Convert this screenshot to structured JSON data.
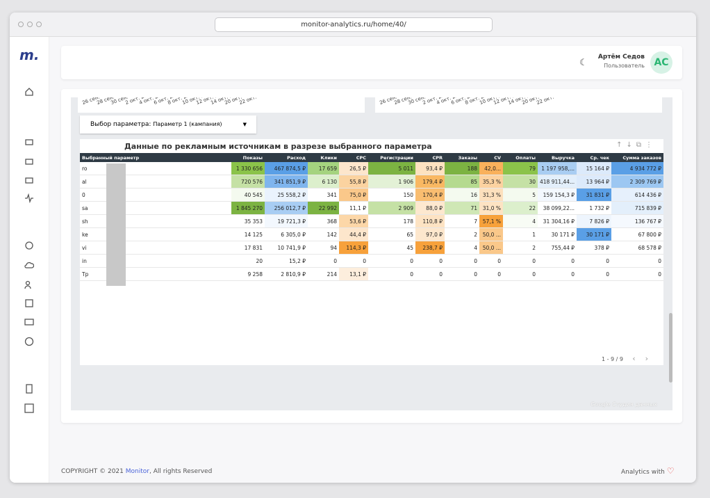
{
  "browser": {
    "url": "monitor-analytics.ru/home/40/"
  },
  "user": {
    "name": "Артём Седов",
    "role": "Пользователь",
    "initials": "АС"
  },
  "date_labels": [
    "26 сен.",
    "28 сен.",
    "30 сен.",
    "2 окт. 2...",
    "4 окт. 2...",
    "6 окт. 2...",
    "8 окт. 2...",
    "10 окт. 2...",
    "12 окт. 2...",
    "14 окт. 2...",
    "20 окт.",
    "22 окт."
  ],
  "selector": {
    "label": "Выбор параметра:",
    "value": "Параметр 1 (кампания)"
  },
  "table": {
    "title": "Данные по рекламным источникам в разрезе выбранного параметра",
    "columns": [
      "Выбранный параметр",
      "Показы",
      "Расход",
      "Клики",
      "CPC",
      "Регистрации",
      "CPR",
      "Заказы",
      "CV",
      "Оплаты",
      "Выручка",
      "Ср. чек",
      "Сумма заказов"
    ],
    "rows": [
      [
        "ro",
        "1 330 656",
        "467 874,5 ₽",
        "17 659",
        "26,5 ₽",
        "5 011",
        "93,4 ₽",
        "188",
        "42,0...",
        "79",
        "1 197 958,...",
        "15 164 ₽",
        "4 934 772 ₽"
      ],
      [
        "al",
        "720 576",
        "341 851,9 ₽",
        "6 130",
        "55,8 ₽",
        "1 906",
        "179,4 ₽",
        "85",
        "35,3 %",
        "30",
        "418 911,44...",
        "13 964 ₽",
        "2 309 769 ₽"
      ],
      [
        "0",
        "40 545",
        "25 558,2 ₽",
        "341",
        "75,0 ₽",
        "150",
        "170,4 ₽",
        "16",
        "31,3 %",
        "5",
        "159 154,3 ₽",
        "31 831 ₽",
        "614 436 ₽"
      ],
      [
        "sa",
        "1 845 270",
        "256 012,7 ₽",
        "22 992",
        "11,1 ₽",
        "2 909",
        "88,0 ₽",
        "71",
        "31,0 %",
        "22",
        "38 099,22...",
        "1 732 ₽",
        "715 839 ₽"
      ],
      [
        "sh",
        "35 353",
        "19 721,3 ₽",
        "368",
        "53,6 ₽",
        "178",
        "110,8 ₽",
        "7",
        "57,1 %",
        "4",
        "31 304,16 ₽",
        "7 826 ₽",
        "136 767 ₽"
      ],
      [
        "ke",
        "14 125",
        "6 305,0 ₽",
        "142",
        "44,4 ₽",
        "65",
        "97,0 ₽",
        "2",
        "50,0 ...",
        "1",
        "30 171 ₽",
        "30 171 ₽",
        "67 800 ₽"
      ],
      [
        "vi",
        "17 831",
        "10 741,9 ₽",
        "94",
        "114,3 ₽",
        "45",
        "238,7 ₽",
        "4",
        "50,0 ...",
        "2",
        "755,44 ₽",
        "378 ₽",
        "68 578 ₽"
      ],
      [
        "in",
        "20",
        "15,2 ₽",
        "0",
        "0",
        "0",
        "0",
        "0",
        "0",
        "0",
        "0",
        "0",
        "0"
      ],
      [
        "Tp",
        "9 258",
        "2 810,9 ₽",
        "214",
        "13,1 ₽",
        "0",
        "0",
        "0",
        "0",
        "0",
        "0",
        "0",
        "0"
      ]
    ],
    "cell_colors": [
      [
        "#ffffff",
        "#8bc34a",
        "#5a9fe6",
        "#a5d37f",
        "#fde6cc",
        "#7cb342",
        "#fde2c0",
        "#7cb342",
        "#f9b15c",
        "#8bc34a",
        "#a9cdf2",
        "#dceafb",
        "#5a9fe6"
      ],
      [
        "#ffffff",
        "#c5e1a5",
        "#7fb5ee",
        "#dcefcc",
        "#fbd3a0",
        "#e3f1d6",
        "#f9b862",
        "#b5da8f",
        "#fcd2a0",
        "#c5e1a5",
        "#e3effb",
        "#dceafb",
        "#9cc7f2"
      ],
      [
        "#ffffff",
        "#f4faef",
        "#eaf3fd",
        "#ffffff",
        "#fac88a",
        "#ffffff",
        "#f9bd70",
        "#f4faef",
        "#fde0bd",
        "#f4faef",
        "#f3f8fe",
        "#5a9fe6",
        "#e6f0fc"
      ],
      [
        "#ffffff",
        "#7cb342",
        "#a8cdf3",
        "#7cb342",
        "#ffffff",
        "#c5e1a5",
        "#fde8cf",
        "#cfe7b5",
        "#fde3c3",
        "#dcefcc",
        "#ffffff",
        "#ffffff",
        "#e3effb"
      ],
      [
        "#ffffff",
        "#ffffff",
        "#f3f8fe",
        "#ffffff",
        "#fcd7a8",
        "#ffffff",
        "#fde3c3",
        "#ffffff",
        "#f7a13b",
        "#f8fcf5",
        "#ffffff",
        "#eef5fd",
        "#f5f9fe"
      ],
      [
        "#ffffff",
        "#ffffff",
        "#ffffff",
        "#ffffff",
        "#fde6cc",
        "#ffffff",
        "#fde7cd",
        "#ffffff",
        "#fac88a",
        "#ffffff",
        "#ffffff",
        "#5a9fe6",
        "#ffffff"
      ],
      [
        "#ffffff",
        "#ffffff",
        "#ffffff",
        "#ffffff",
        "#f7a13b",
        "#ffffff",
        "#f7a13b",
        "#ffffff",
        "#fac88a",
        "#ffffff",
        "#ffffff",
        "#ffffff",
        "#ffffff"
      ],
      [
        "#ffffff",
        "#ffffff",
        "#ffffff",
        "#ffffff",
        "#ffffff",
        "#ffffff",
        "#ffffff",
        "#ffffff",
        "#ffffff",
        "#ffffff",
        "#ffffff",
        "#ffffff",
        "#ffffff"
      ],
      [
        "#ffffff",
        "#ffffff",
        "#ffffff",
        "#ffffff",
        "#fdeedd",
        "#ffffff",
        "#ffffff",
        "#ffffff",
        "#ffffff",
        "#ffffff",
        "#ffffff",
        "#ffffff",
        "#ffffff"
      ]
    ],
    "pagination": "1 - 9 / 9"
  },
  "watermark": "Google Студия данных",
  "footer": {
    "copyright": "COPYRIGHT © 2021",
    "brand": "Monitor",
    "rights": ", All rights Reserved",
    "right": "Analytics with"
  }
}
